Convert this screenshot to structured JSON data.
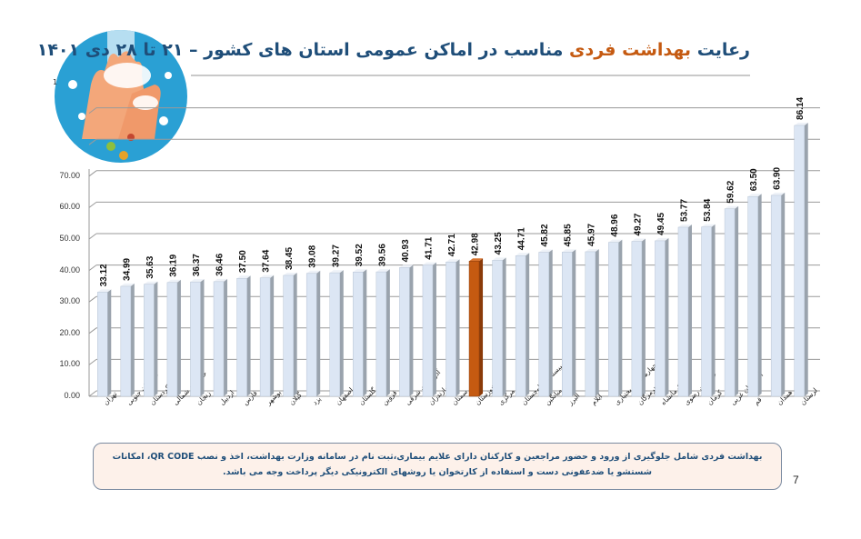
{
  "header": {
    "title_prefix": "رعایت",
    "title_highlight": "بهداشت فردی",
    "title_suffix": "مناسب در اماکن عمومی استان های کشور – ۲۱ تا ۲۸ دی ۱۴۰۱"
  },
  "logo": {
    "icon": "handwashing-icon",
    "marker": "1"
  },
  "footer": {
    "note": "بهداشت فردی شامل جلوگیری از ورود و حضور مراجعین و کارکنان دارای علایم بیماری،ثبت نام در سامانه وزارت بهداشت، اخذ و نصب  QR CODE، امکانات شستشو یا ضدعفونی دست و استفاده از کارتخوان یا روشهای الکترونیکی دیگر پرداخت وجه می باشد.",
    "page_number": "7"
  },
  "colors": {
    "bar": "#dce6f4",
    "bar_side": "#9aa3ad",
    "highlight": "#c55a11",
    "title": "#1f4e79",
    "title_highlight": "#c55a11"
  },
  "chart_data": {
    "type": "bar",
    "title": "رعایت بهداشت فردی مناسب در اماکن عمومی استان های کشور – ۲۱ تا ۲۸ دی ۱۴۰۱",
    "xlabel": "",
    "ylabel": "",
    "ylim": [
      0,
      70
    ],
    "yticks": [
      "0.00",
      "10.00",
      "20.00",
      "30.00",
      "40.00",
      "50.00",
      "60.00",
      "70.00"
    ],
    "grid": true,
    "highlight_index": 16,
    "categories": [
      "تهران",
      "خراسان جنوبی",
      "کردستان",
      "خراسان شمالی",
      "زنجان",
      "اردبیل",
      "فارس",
      "بوشهر",
      "گیلان",
      "یزد",
      "اصفهان",
      "گلستان",
      "قزوین",
      "آذربایجان شرقی",
      "مازندران",
      "سمنان",
      "خوزستان",
      "مرکزی",
      "سیستان و بلوچستان",
      "میانگین",
      "البرز",
      "ایلام",
      "چهارمحال و بختیاری",
      "هرمزگان",
      "کرمانشاه",
      "خراسان رضوی",
      "کرمان",
      "آذربایجان غربی",
      "قم",
      "همدان",
      "لرستان"
    ],
    "values": [
      33.12,
      34.99,
      35.63,
      36.19,
      36.37,
      36.46,
      37.5,
      37.64,
      38.45,
      39.08,
      39.27,
      39.52,
      39.56,
      40.93,
      41.71,
      42.71,
      42.98,
      43.25,
      44.71,
      45.82,
      45.85,
      45.97,
      48.96,
      49.27,
      49.45,
      53.77,
      53.84,
      59.62,
      63.5,
      63.9,
      86.14
    ],
    "labels": [
      "33.12",
      "34.99",
      "35.63",
      "36.19",
      "36.37",
      "36.46",
      "37.50",
      "37.64",
      "38.45",
      "39.08",
      "39.27",
      "39.52",
      "39.56",
      "40.93",
      "41.71",
      "42.71",
      "42.98",
      "43.25",
      "44.71",
      "45.82",
      "45.85",
      "45.97",
      "48.96",
      "49.27",
      "49.45",
      "53.77",
      "53.84",
      "59.62",
      "63.50",
      "63.90",
      "86.14"
    ]
  }
}
